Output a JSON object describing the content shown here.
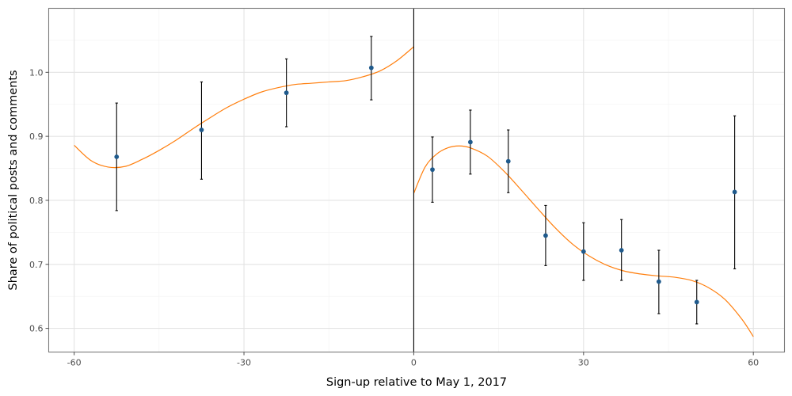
{
  "chart_data": {
    "type": "scatter",
    "xlabel": "Sign-up relative to May 1, 2017",
    "ylabel": "Share of political posts and comments",
    "xlim": [
      -64.5,
      65.5
    ],
    "ylim": [
      0.563,
      1.1
    ],
    "x_ticks": [
      -60,
      -30,
      0,
      30,
      60
    ],
    "x_tick_labels": [
      "-60",
      "-30",
      "0",
      "30",
      "60"
    ],
    "y_ticks": [
      0.6,
      0.7,
      0.8,
      0.9,
      1.0
    ],
    "y_tick_labels": [
      "0.6",
      "0.7",
      "0.8",
      "0.9",
      "1.0"
    ],
    "x_minor_ticks": [
      -45,
      -15,
      15,
      45
    ],
    "y_minor_ticks": [
      0.65,
      0.75,
      0.85,
      0.95,
      1.05
    ],
    "grid": true,
    "vline_x": 0,
    "colors": {
      "points": "#1f5a8c",
      "fit": "#ff7f0e",
      "errorbar": "#000000",
      "vline": "#000000"
    },
    "points": [
      {
        "x": -52.5,
        "y": 0.868,
        "lo": 0.784,
        "hi": 0.952
      },
      {
        "x": -37.5,
        "y": 0.91,
        "lo": 0.833,
        "hi": 0.985
      },
      {
        "x": -22.5,
        "y": 0.968,
        "lo": 0.915,
        "hi": 1.021
      },
      {
        "x": -7.5,
        "y": 1.007,
        "lo": 0.957,
        "hi": 1.056
      },
      {
        "x": 3.3,
        "y": 0.848,
        "lo": 0.797,
        "hi": 0.899
      },
      {
        "x": 10.0,
        "y": 0.891,
        "lo": 0.841,
        "hi": 0.941
      },
      {
        "x": 16.7,
        "y": 0.861,
        "lo": 0.812,
        "hi": 0.91
      },
      {
        "x": 23.3,
        "y": 0.745,
        "lo": 0.698,
        "hi": 0.792
      },
      {
        "x": 30.0,
        "y": 0.72,
        "lo": 0.675,
        "hi": 0.765
      },
      {
        "x": 36.7,
        "y": 0.722,
        "lo": 0.675,
        "hi": 0.77
      },
      {
        "x": 43.3,
        "y": 0.673,
        "lo": 0.623,
        "hi": 0.722
      },
      {
        "x": 50.0,
        "y": 0.641,
        "lo": 0.607,
        "hi": 0.675
      },
      {
        "x": 56.7,
        "y": 0.813,
        "lo": 0.693,
        "hi": 0.932
      }
    ],
    "fit_left": [
      [
        -60,
        0.886
      ],
      [
        -57,
        0.862
      ],
      [
        -54,
        0.852
      ],
      [
        -51,
        0.853
      ],
      [
        -48,
        0.864
      ],
      [
        -45,
        0.878
      ],
      [
        -42,
        0.894
      ],
      [
        -39,
        0.912
      ],
      [
        -36,
        0.929
      ],
      [
        -33,
        0.945
      ],
      [
        -30,
        0.958
      ],
      [
        -27,
        0.969
      ],
      [
        -24,
        0.976
      ],
      [
        -21,
        0.981
      ],
      [
        -18,
        0.983
      ],
      [
        -15,
        0.985
      ],
      [
        -12,
        0.987
      ],
      [
        -9,
        0.993
      ],
      [
        -6,
        1.002
      ],
      [
        -3,
        1.018
      ],
      [
        0,
        1.04
      ]
    ],
    "fit_right": [
      [
        0,
        0.811
      ],
      [
        2,
        0.852
      ],
      [
        4,
        0.872
      ],
      [
        6,
        0.882
      ],
      [
        8,
        0.885
      ],
      [
        10,
        0.882
      ],
      [
        13,
        0.869
      ],
      [
        16,
        0.845
      ],
      [
        19,
        0.816
      ],
      [
        22,
        0.786
      ],
      [
        25,
        0.757
      ],
      [
        28,
        0.732
      ],
      [
        31,
        0.713
      ],
      [
        34,
        0.699
      ],
      [
        37,
        0.69
      ],
      [
        40,
        0.685
      ],
      [
        43,
        0.682
      ],
      [
        46,
        0.68
      ],
      [
        49,
        0.675
      ],
      [
        52,
        0.664
      ],
      [
        55,
        0.645
      ],
      [
        58,
        0.614
      ],
      [
        60,
        0.587
      ]
    ]
  }
}
